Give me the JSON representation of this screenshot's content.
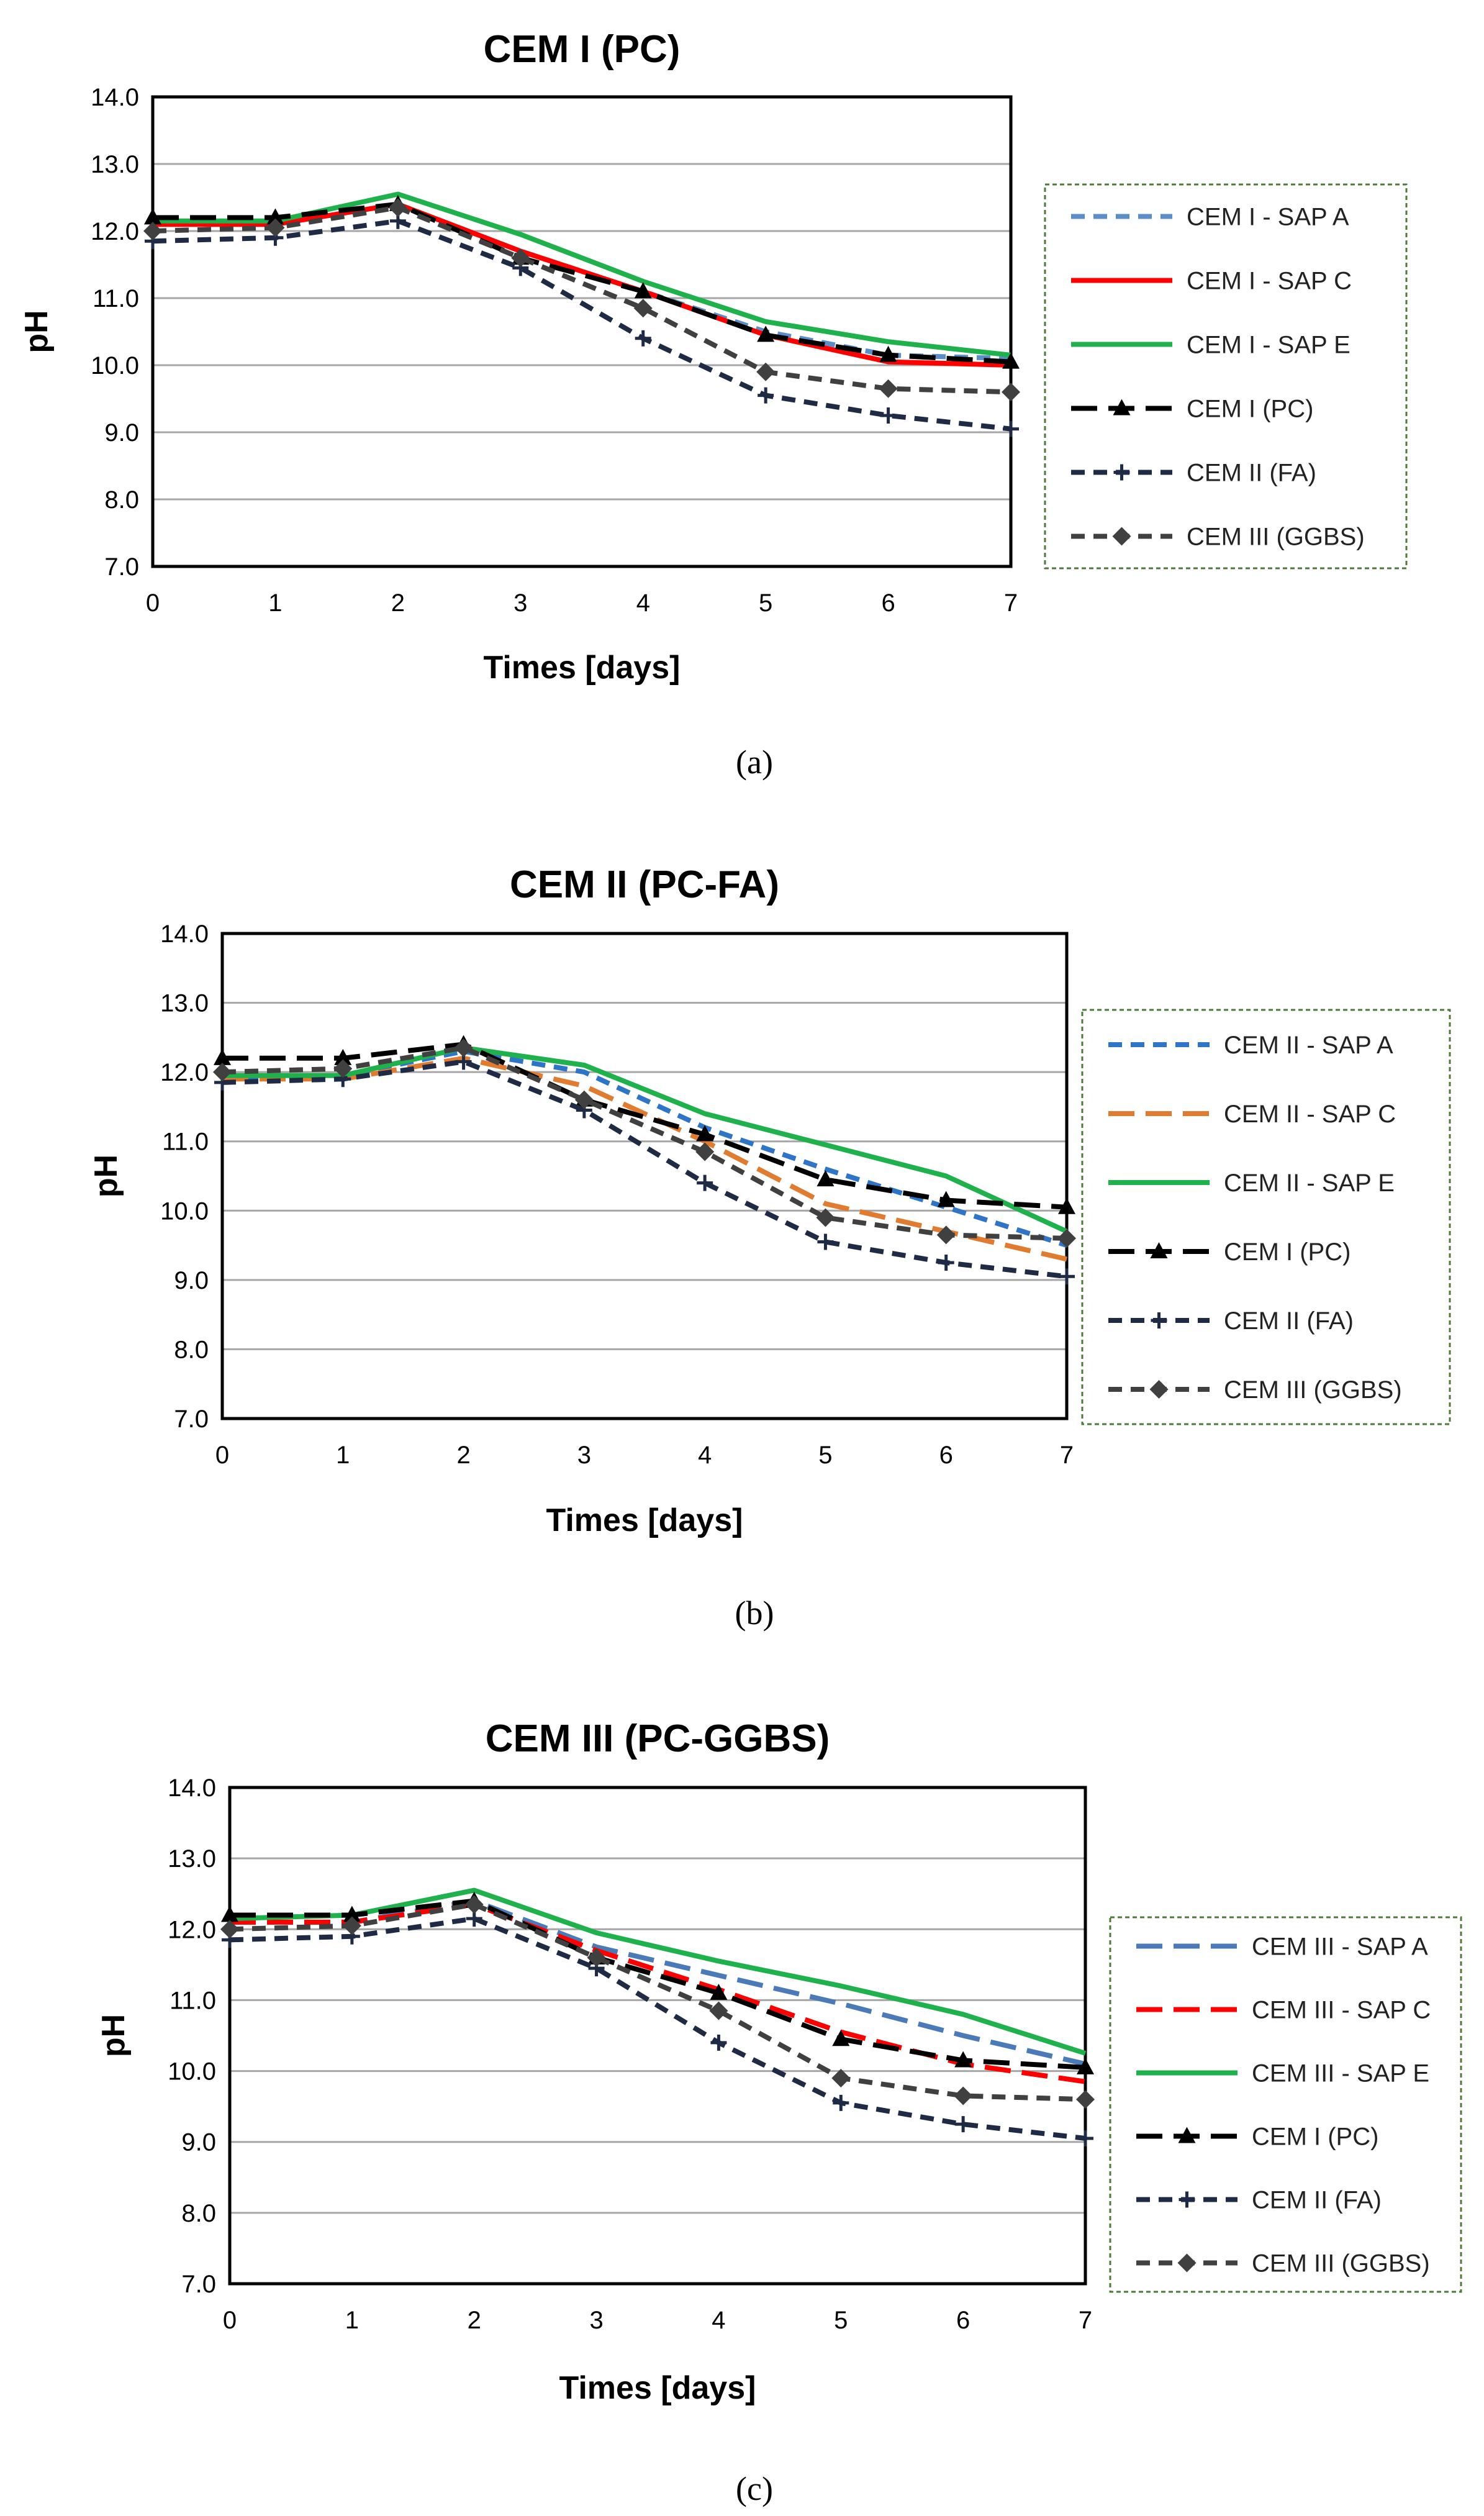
{
  "captions": [
    "(a)",
    "(b)",
    "(c)"
  ],
  "chart_data": [
    {
      "type": "line",
      "title": "CEM I (PC)",
      "xlabel": "Times [days]",
      "ylabel": "pH",
      "xlim": [
        0,
        7
      ],
      "ylim": [
        7.0,
        14.0
      ],
      "x_ticks": [
        "0",
        "1",
        "2",
        "3",
        "4",
        "5",
        "6",
        "7"
      ],
      "y_ticks": [
        "7.0",
        "8.0",
        "9.0",
        "10.0",
        "11.0",
        "12.0",
        "13.0",
        "14.0"
      ],
      "grid": true,
      "legend_position": "right",
      "x": [
        0,
        1,
        2,
        3,
        4,
        5,
        6,
        7
      ],
      "series": [
        {
          "name": "CEM I - SAP A",
          "color": "#5b8ec9",
          "dash": "short",
          "marker": "none",
          "values": [
            12.1,
            12.1,
            12.4,
            11.7,
            11.1,
            10.5,
            10.15,
            10.1
          ]
        },
        {
          "name": "CEM I - SAP C",
          "color": "#ff0000",
          "dash": "solid",
          "marker": "none",
          "values": [
            12.1,
            12.1,
            12.4,
            11.7,
            11.1,
            10.45,
            10.05,
            10.0
          ]
        },
        {
          "name": "CEM I - SAP E",
          "color": "#1fb14b",
          "dash": "solid",
          "marker": "none",
          "values": [
            12.15,
            12.15,
            12.55,
            11.95,
            11.25,
            10.65,
            10.35,
            10.15
          ]
        },
        {
          "name": "CEM I (PC)",
          "color": "#000000",
          "dash": "long",
          "marker": "triangle",
          "values": [
            12.2,
            12.2,
            12.4,
            11.6,
            11.1,
            10.45,
            10.15,
            10.05
          ]
        },
        {
          "name": "CEM II (FA)",
          "color": "#1f2a44",
          "dash": "short",
          "marker": "plus",
          "values": [
            11.85,
            11.9,
            12.15,
            11.45,
            10.4,
            9.55,
            9.25,
            9.05
          ]
        },
        {
          "name": "CEM III (GGBS)",
          "color": "#404040",
          "dash": "short",
          "marker": "diamond",
          "values": [
            12.0,
            12.05,
            12.35,
            11.6,
            10.85,
            9.9,
            9.65,
            9.6
          ]
        }
      ]
    },
    {
      "type": "line",
      "title": "CEM II (PC-FA)",
      "xlabel": "Times [days]",
      "ylabel": "pH",
      "xlim": [
        0,
        7
      ],
      "ylim": [
        7.0,
        14.0
      ],
      "x_ticks": [
        "0",
        "1",
        "2",
        "3",
        "4",
        "5",
        "6",
        "7"
      ],
      "y_ticks": [
        "7.0",
        "8.0",
        "9.0",
        "10.0",
        "11.0",
        "12.0",
        "13.0",
        "14.0"
      ],
      "grid": true,
      "legend_position": "right",
      "x": [
        0,
        1,
        2,
        3,
        4,
        5,
        6,
        7
      ],
      "series": [
        {
          "name": "CEM II - SAP A",
          "color": "#2e75c7",
          "dash": "short",
          "marker": "none",
          "values": [
            11.9,
            11.95,
            12.3,
            12.0,
            11.2,
            10.6,
            10.05,
            9.5
          ]
        },
        {
          "name": "CEM II - SAP C",
          "color": "#e07b2f",
          "dash": "long",
          "marker": "none",
          "values": [
            11.9,
            11.9,
            12.2,
            11.8,
            11.0,
            10.1,
            9.7,
            9.3
          ]
        },
        {
          "name": "CEM II - SAP E",
          "color": "#1fb14b",
          "dash": "solid",
          "marker": "none",
          "values": [
            11.95,
            11.95,
            12.35,
            12.1,
            11.4,
            10.95,
            10.5,
            9.7
          ]
        },
        {
          "name": "CEM I (PC)",
          "color": "#000000",
          "dash": "long",
          "marker": "triangle",
          "values": [
            12.2,
            12.2,
            12.4,
            11.6,
            11.1,
            10.45,
            10.15,
            10.05
          ]
        },
        {
          "name": "CEM II (FA)",
          "color": "#1f2a44",
          "dash": "short",
          "marker": "plus",
          "values": [
            11.85,
            11.9,
            12.15,
            11.45,
            10.4,
            9.55,
            9.25,
            9.05
          ]
        },
        {
          "name": "CEM III (GGBS)",
          "color": "#404040",
          "dash": "short",
          "marker": "diamond",
          "values": [
            12.0,
            12.05,
            12.35,
            11.6,
            10.85,
            9.9,
            9.65,
            9.6
          ]
        }
      ]
    },
    {
      "type": "line",
      "title": "CEM III (PC-GGBS)",
      "xlabel": "Times [days]",
      "ylabel": "pH",
      "xlim": [
        0,
        7
      ],
      "ylim": [
        7.0,
        14.0
      ],
      "x_ticks": [
        "0",
        "1",
        "2",
        "3",
        "4",
        "5",
        "6",
        "7"
      ],
      "y_ticks": [
        "7.0",
        "8.0",
        "9.0",
        "10.0",
        "11.0",
        "12.0",
        "13.0",
        "14.0"
      ],
      "grid": true,
      "legend_position": "right",
      "x": [
        0,
        1,
        2,
        3,
        4,
        5,
        6,
        7
      ],
      "series": [
        {
          "name": "CEM III - SAP A",
          "color": "#4a7ab8",
          "dash": "long",
          "marker": "none",
          "values": [
            12.1,
            12.1,
            12.4,
            11.75,
            11.35,
            10.95,
            10.5,
            10.1
          ]
        },
        {
          "name": "CEM III - SAP C",
          "color": "#ff0000",
          "dash": "long",
          "marker": "none",
          "values": [
            12.1,
            12.1,
            12.35,
            11.7,
            11.15,
            10.55,
            10.1,
            9.85
          ]
        },
        {
          "name": "CEM III - SAP E",
          "color": "#1fb14b",
          "dash": "solid",
          "marker": "none",
          "values": [
            12.15,
            12.2,
            12.55,
            11.95,
            11.55,
            11.2,
            10.8,
            10.25
          ]
        },
        {
          "name": "CEM I (PC)",
          "color": "#000000",
          "dash": "long",
          "marker": "triangle",
          "values": [
            12.2,
            12.2,
            12.4,
            11.6,
            11.1,
            10.45,
            10.15,
            10.05
          ]
        },
        {
          "name": "CEM II (FA)",
          "color": "#1f2a44",
          "dash": "short",
          "marker": "plus",
          "values": [
            11.85,
            11.9,
            12.15,
            11.45,
            10.4,
            9.55,
            9.25,
            9.05
          ]
        },
        {
          "name": "CEM III (GGBS)",
          "color": "#404040",
          "dash": "short",
          "marker": "diamond",
          "values": [
            12.0,
            12.05,
            12.35,
            11.6,
            10.85,
            9.9,
            9.65,
            9.6
          ]
        }
      ]
    }
  ]
}
